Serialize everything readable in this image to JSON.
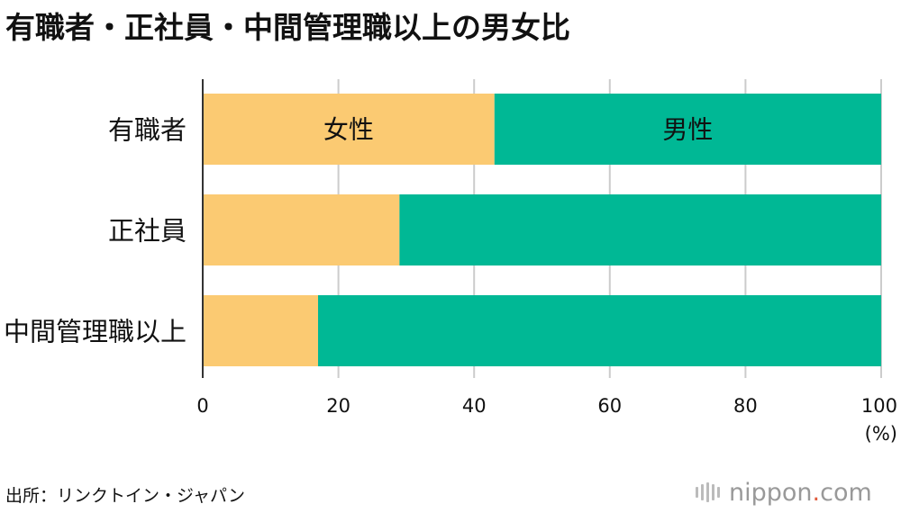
{
  "title": "有職者・正社員・中間管理職以上の男女比",
  "source": "出所：リンクトイン・ジャパン",
  "logo": {
    "text": "nippon",
    "dot": ".",
    "suffix": "com"
  },
  "colors": {
    "female": "#fbca72",
    "male": "#00b895",
    "grid": "#cccccc",
    "axis": "#333333"
  },
  "chart_data": {
    "type": "bar",
    "orientation": "horizontal",
    "stacked": true,
    "categories": [
      "有職者",
      "正社員",
      "中間管理職以上"
    ],
    "series": [
      {
        "name": "女性",
        "values": [
          43,
          29,
          17
        ]
      },
      {
        "name": "男性",
        "values": [
          57,
          71,
          83
        ]
      }
    ],
    "xlim": [
      0,
      100
    ],
    "xticks": [
      "0",
      "20",
      "40",
      "60",
      "80",
      "100"
    ],
    "xunit": "(%)",
    "grid": true
  }
}
